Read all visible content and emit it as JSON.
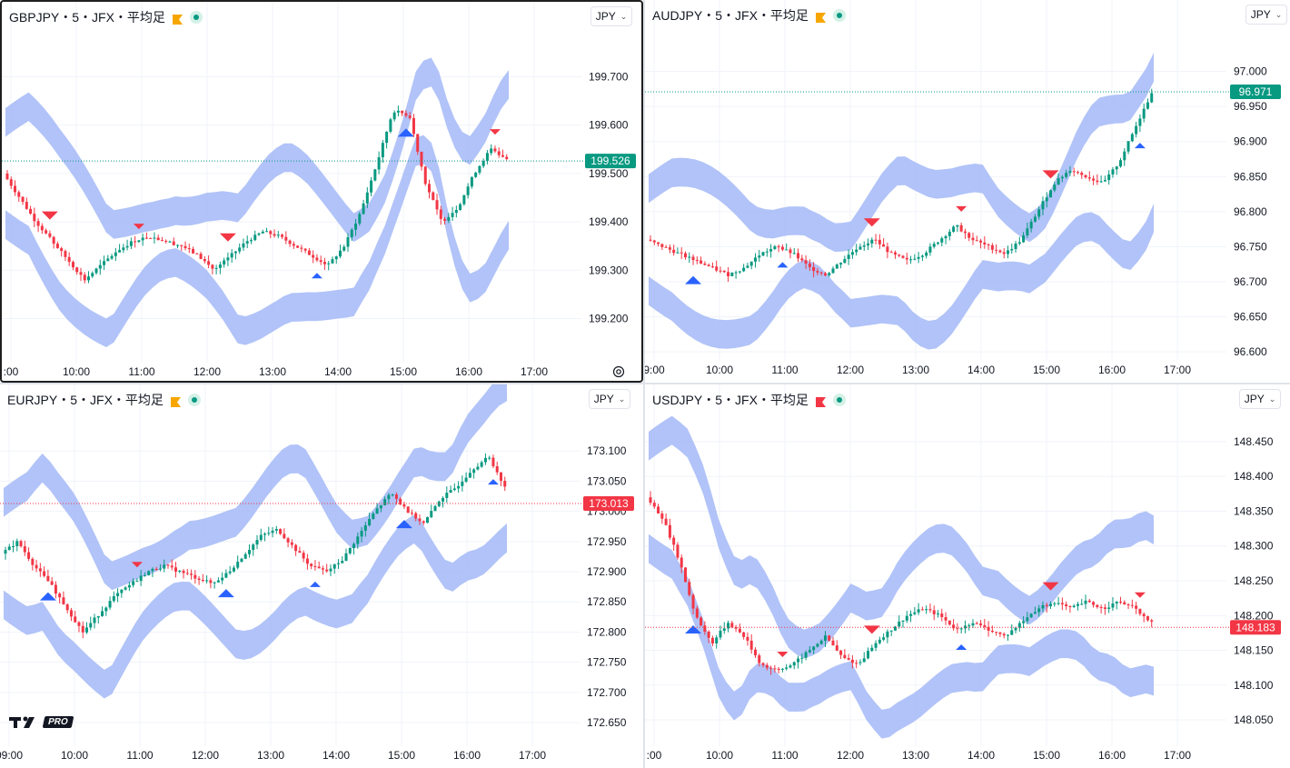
{
  "colors": {
    "up": "#089981",
    "down": "#f23645",
    "band": "#a9bdf7",
    "signal_up": "#2962ff",
    "signal_down": "#f23645",
    "grid": "#f0f3fa",
    "text": "#131722"
  },
  "panes": [
    {
      "id": "gbpjpy",
      "symbol": "GBPJPY・5・JFX・平均足",
      "flag_color": "#f7a600",
      "flag_icon": "flag-icon",
      "currency": "JPY",
      "price_label": "199.526",
      "price_label_color": "#089981",
      "y_ticks": [
        "199.700",
        "199.600",
        "199.500",
        "199.400",
        "199.300",
        "199.200"
      ],
      "x_ticks": [
        ":00",
        "10:00",
        "11:00",
        "12:00",
        "13:00",
        "14:00",
        "15:00",
        "16:00",
        "17:00"
      ],
      "series": {
        "start": 199.5,
        "last": 199.526,
        "ymin": 199.12,
        "ymax": 199.78,
        "path": [
          199.5,
          199.45,
          199.4,
          199.36,
          199.32,
          199.28,
          199.31,
          199.34,
          199.36,
          199.37,
          199.36,
          199.35,
          199.33,
          199.3,
          199.33,
          199.36,
          199.38,
          199.37,
          199.35,
          199.33,
          199.31,
          199.35,
          199.42,
          199.52,
          199.63,
          199.62,
          199.48,
          199.4,
          199.43,
          199.5,
          199.55,
          199.53
        ]
      }
    },
    {
      "id": "audjpy",
      "symbol": "AUDJPY・5・JFX・平均足",
      "flag_color": "#f7a600",
      "flag_icon": "flag-icon",
      "currency": "JPY",
      "price_label": "96.971",
      "price_label_color": "#089981",
      "y_ticks": [
        "97.000",
        "96.950",
        "96.900",
        "96.850",
        "96.800",
        "96.750",
        "96.700",
        "96.650",
        "96.600"
      ],
      "x_ticks": [
        "9:00",
        "10:00",
        "11:00",
        "12:00",
        "13:00",
        "14:00",
        "15:00",
        "16:00",
        "17:00"
      ],
      "series": {
        "start": 96.75,
        "last": 96.971,
        "ymin": 96.595,
        "ymax": 97.05,
        "path": [
          96.76,
          96.75,
          96.74,
          96.73,
          96.72,
          96.71,
          96.72,
          96.74,
          96.75,
          96.74,
          96.72,
          96.71,
          96.73,
          96.75,
          96.76,
          96.74,
          96.73,
          96.74,
          96.76,
          96.78,
          96.76,
          96.75,
          96.74,
          96.76,
          96.8,
          96.84,
          96.86,
          96.85,
          96.84,
          96.87,
          96.92,
          96.97
        ]
      }
    },
    {
      "id": "eurjpy",
      "symbol": "EURJPY・5・JFX・平均足",
      "flag_color": "#f7a600",
      "flag_icon": "flag-icon",
      "currency": "JPY",
      "price_label": "173.013",
      "price_label_color": "#f23645",
      "y_ticks": [
        "173.100",
        "173.050",
        "173.000",
        "172.950",
        "172.900",
        "172.850",
        "172.800",
        "172.750",
        "172.700",
        "172.650"
      ],
      "x_ticks": [
        "09:00",
        "10:00",
        "11:00",
        "12:00",
        "13:00",
        "14:00",
        "15:00",
        "16:00",
        "17:00"
      ],
      "series": {
        "start": 172.93,
        "last": 173.013,
        "ymin": 172.62,
        "ymax": 173.15,
        "path": [
          172.93,
          172.95,
          172.91,
          172.88,
          172.84,
          172.8,
          172.83,
          172.86,
          172.88,
          172.9,
          172.91,
          172.9,
          172.89,
          172.88,
          172.9,
          172.93,
          172.96,
          172.97,
          172.94,
          172.91,
          172.9,
          172.92,
          172.96,
          173.0,
          173.03,
          173.0,
          172.98,
          173.02,
          173.04,
          173.07,
          173.09,
          173.04
        ]
      }
    },
    {
      "id": "usdjpy",
      "symbol": "USDJPY・5・JFX・平均足",
      "flag_color": "#f23645",
      "flag_icon": "flag-icon",
      "currency": "JPY",
      "price_label": "148.183",
      "price_label_color": "#f23645",
      "y_ticks": [
        "148.450",
        "148.400",
        "148.350",
        "148.300",
        "148.250",
        "148.200",
        "148.150",
        "148.100",
        "148.050"
      ],
      "x_ticks": [
        ":00",
        "10:00",
        "11:00",
        "12:00",
        "13:00",
        "14:00",
        "15:00",
        "16:00",
        "17:00"
      ],
      "series": {
        "start": 148.37,
        "last": 148.183,
        "ymin": 148.02,
        "ymax": 148.48,
        "path": [
          148.37,
          148.34,
          148.28,
          148.2,
          148.16,
          148.19,
          148.17,
          148.13,
          148.12,
          148.13,
          148.15,
          148.17,
          148.14,
          148.13,
          148.16,
          148.18,
          148.2,
          148.21,
          148.2,
          148.18,
          148.19,
          148.18,
          148.17,
          148.19,
          148.21,
          148.22,
          148.21,
          148.22,
          148.21,
          148.22,
          148.21,
          148.19
        ]
      }
    }
  ],
  "branding": {
    "logo": "tradingview-logo",
    "badge": "PRO"
  }
}
